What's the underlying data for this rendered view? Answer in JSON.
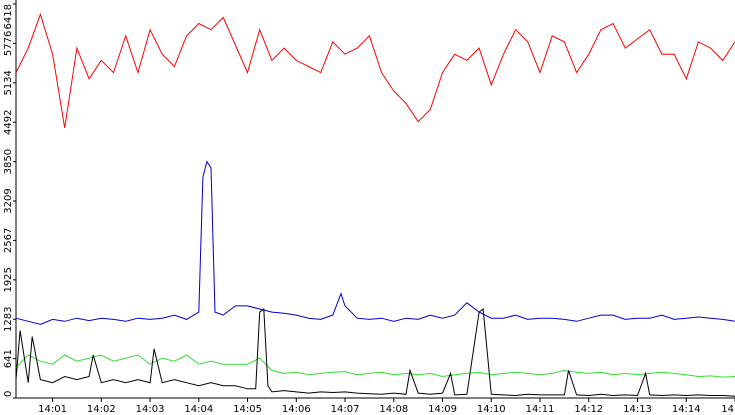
{
  "chart_data": {
    "type": "line",
    "title": "",
    "xlabel": "",
    "ylabel": "",
    "x_tick_labels": [
      "14:01",
      "14:02",
      "14:03",
      "14:04",
      "14:05",
      "14:06",
      "14:07",
      "14:08",
      "14:09",
      "14:10",
      "14:11",
      "14:12",
      "14:13",
      "14:14",
      "14"
    ],
    "y_tick_labels": [
      "0",
      "641",
      "1283",
      "1925",
      "2567",
      "3209",
      "3850",
      "4492",
      "5134",
      "5776",
      "6418"
    ],
    "ylim": [
      0,
      6418
    ],
    "xlim": [
      "14:00:15",
      "14:15:00"
    ],
    "grid": false,
    "legend": "none",
    "series": [
      {
        "color": "#ff0000",
        "x": [
          "14:00:15",
          "14:00:30",
          "14:00:45",
          "14:01:00",
          "14:01:15",
          "14:01:30",
          "14:01:45",
          "14:02:00",
          "14:02:15",
          "14:02:30",
          "14:02:45",
          "14:03:00",
          "14:03:15",
          "14:03:30",
          "14:03:45",
          "14:04:00",
          "14:04:15",
          "14:04:30",
          "14:04:45",
          "14:05:00",
          "14:05:15",
          "14:05:30",
          "14:05:45",
          "14:06:00",
          "14:06:15",
          "14:06:30",
          "14:06:45",
          "14:07:00",
          "14:07:15",
          "14:07:30",
          "14:07:45",
          "14:08:00",
          "14:08:15",
          "14:08:30",
          "14:08:45",
          "14:09:00",
          "14:09:15",
          "14:09:30",
          "14:09:45",
          "14:10:00",
          "14:10:15",
          "14:10:30",
          "14:10:45",
          "14:11:00",
          "14:11:15",
          "14:11:30",
          "14:11:45",
          "14:12:00",
          "14:12:15",
          "14:12:30",
          "14:12:45",
          "14:13:00",
          "14:13:15",
          "14:13:30",
          "14:13:45",
          "14:14:00",
          "14:14:15",
          "14:14:30",
          "14:14:45",
          "14:15:00"
        ],
        "values": [
          5300,
          5700,
          6250,
          5600,
          4400,
          5700,
          5200,
          5500,
          5300,
          5900,
          5300,
          6000,
          5600,
          5400,
          5900,
          6100,
          6000,
          6200,
          5750,
          5300,
          6000,
          5500,
          5700,
          5500,
          5400,
          5300,
          5800,
          5600,
          5700,
          5900,
          5300,
          5000,
          4800,
          4500,
          4700,
          5300,
          5600,
          5500,
          5700,
          5100,
          5600,
          6000,
          5800,
          5300,
          5900,
          5800,
          5300,
          5600,
          6000,
          6100,
          5700,
          5850,
          6000,
          5600,
          5600,
          5200,
          5800,
          5700,
          5500,
          5800
        ]
      },
      {
        "color": "#0000cc",
        "x": [
          "14:00:15",
          "14:00:30",
          "14:00:45",
          "14:01:00",
          "14:01:15",
          "14:01:30",
          "14:01:45",
          "14:02:00",
          "14:02:15",
          "14:02:30",
          "14:02:45",
          "14:03:00",
          "14:03:15",
          "14:03:30",
          "14:03:45",
          "14:04:00",
          "14:04:05",
          "14:04:10",
          "14:04:15",
          "14:04:20",
          "14:04:30",
          "14:04:45",
          "14:05:00",
          "14:05:15",
          "14:05:30",
          "14:05:45",
          "14:06:00",
          "14:06:15",
          "14:06:30",
          "14:06:45",
          "14:06:55",
          "14:07:00",
          "14:07:15",
          "14:07:30",
          "14:07:45",
          "14:08:00",
          "14:08:15",
          "14:08:30",
          "14:08:45",
          "14:09:00",
          "14:09:15",
          "14:09:30",
          "14:09:45",
          "14:10:00",
          "14:10:15",
          "14:10:30",
          "14:10:45",
          "14:11:00",
          "14:11:15",
          "14:11:30",
          "14:11:45",
          "14:12:00",
          "14:12:15",
          "14:12:30",
          "14:12:45",
          "14:13:00",
          "14:13:15",
          "14:13:30",
          "14:13:45",
          "14:14:00",
          "14:14:15",
          "14:14:30",
          "14:14:45",
          "14:15:00"
        ],
        "values": [
          1300,
          1250,
          1200,
          1280,
          1250,
          1300,
          1260,
          1300,
          1280,
          1250,
          1300,
          1280,
          1300,
          1350,
          1280,
          1400,
          3600,
          3850,
          3750,
          1400,
          1350,
          1500,
          1500,
          1450,
          1400,
          1380,
          1350,
          1300,
          1280,
          1350,
          1700,
          1500,
          1300,
          1280,
          1300,
          1250,
          1300,
          1280,
          1350,
          1300,
          1350,
          1550,
          1400,
          1300,
          1300,
          1350,
          1280,
          1300,
          1300,
          1280,
          1250,
          1300,
          1350,
          1350,
          1280,
          1300,
          1300,
          1350,
          1280,
          1300,
          1320,
          1300,
          1280,
          1250
        ]
      },
      {
        "color": "#33dd33",
        "x": [
          "14:00:15",
          "14:00:30",
          "14:00:45",
          "14:01:00",
          "14:01:15",
          "14:01:30",
          "14:01:45",
          "14:02:00",
          "14:02:15",
          "14:02:30",
          "14:02:45",
          "14:03:00",
          "14:03:15",
          "14:03:30",
          "14:03:45",
          "14:04:00",
          "14:04:15",
          "14:04:30",
          "14:04:45",
          "14:05:00",
          "14:05:15",
          "14:05:30",
          "14:05:45",
          "14:06:00",
          "14:06:15",
          "14:06:30",
          "14:06:45",
          "14:07:00",
          "14:07:15",
          "14:07:30",
          "14:07:45",
          "14:08:00",
          "14:08:15",
          "14:08:30",
          "14:08:45",
          "14:09:00",
          "14:09:15",
          "14:09:30",
          "14:09:45",
          "14:10:00",
          "14:10:15",
          "14:10:30",
          "14:10:45",
          "14:11:00",
          "14:11:15",
          "14:11:30",
          "14:11:45",
          "14:12:00",
          "14:12:15",
          "14:12:30",
          "14:12:45",
          "14:13:00",
          "14:13:15",
          "14:13:30",
          "14:13:45",
          "14:14:00",
          "14:14:15",
          "14:14:30",
          "14:14:45",
          "14:15:00"
        ],
        "values": [
          500,
          700,
          600,
          550,
          700,
          600,
          650,
          700,
          600,
          650,
          700,
          550,
          650,
          600,
          700,
          550,
          600,
          550,
          550,
          550,
          650,
          450,
          400,
          420,
          380,
          400,
          420,
          430,
          380,
          400,
          420,
          380,
          400,
          380,
          400,
          350,
          380,
          400,
          420,
          380,
          400,
          420,
          400,
          380,
          400,
          450,
          420,
          400,
          420,
          380,
          400,
          380,
          400,
          420,
          400,
          380,
          350,
          360,
          340,
          350
        ]
      },
      {
        "color": "#000000",
        "x": [
          "14:00:15",
          "14:00:20",
          "14:00:30",
          "14:00:35",
          "14:00:45",
          "14:01:00",
          "14:01:15",
          "14:01:30",
          "14:01:45",
          "14:01:50",
          "14:02:00",
          "14:02:15",
          "14:02:30",
          "14:02:45",
          "14:03:00",
          "14:03:05",
          "14:03:15",
          "14:03:30",
          "14:03:45",
          "14:04:00",
          "14:04:15",
          "14:04:30",
          "14:04:45",
          "14:05:00",
          "14:05:10",
          "14:05:15",
          "14:05:20",
          "14:05:25",
          "14:05:30",
          "14:05:45",
          "14:06:00",
          "14:06:15",
          "14:06:30",
          "14:06:45",
          "14:07:00",
          "14:07:15",
          "14:07:30",
          "14:07:45",
          "14:08:00",
          "14:08:15",
          "14:08:20",
          "14:08:30",
          "14:08:45",
          "14:09:00",
          "14:09:10",
          "14:09:15",
          "14:09:30",
          "14:09:45",
          "14:09:50",
          "14:10:00",
          "14:10:15",
          "14:10:30",
          "14:10:45",
          "14:11:00",
          "14:11:15",
          "14:11:30",
          "14:11:35",
          "14:11:45",
          "14:12:00",
          "14:12:15",
          "14:12:30",
          "14:12:45",
          "14:13:00",
          "14:13:10",
          "14:13:15",
          "14:13:30",
          "14:13:45",
          "14:14:00",
          "14:14:15",
          "14:14:30",
          "14:14:45",
          "14:15:00"
        ],
        "values": [
          300,
          1100,
          250,
          1000,
          300,
          250,
          350,
          300,
          350,
          700,
          250,
          300,
          250,
          300,
          250,
          800,
          250,
          300,
          250,
          200,
          250,
          200,
          200,
          150,
          150,
          1400,
          1450,
          200,
          100,
          120,
          100,
          80,
          100,
          90,
          100,
          80,
          70,
          60,
          80,
          60,
          450,
          80,
          60,
          80,
          400,
          50,
          60,
          1400,
          1450,
          60,
          50,
          40,
          60,
          50,
          50,
          50,
          450,
          50,
          40,
          60,
          40,
          50,
          40,
          400,
          50,
          40,
          50,
          40,
          50,
          40,
          40,
          30
        ]
      }
    ]
  }
}
